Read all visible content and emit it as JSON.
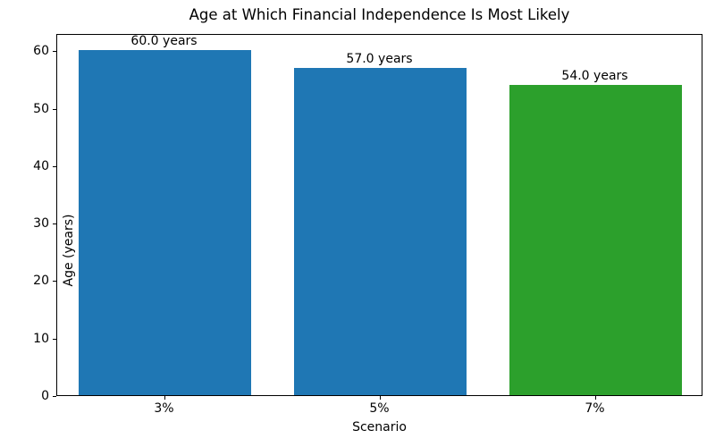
{
  "chart_data": {
    "type": "bar",
    "title": "Age at Which Financial Independence Is Most Likely",
    "xlabel": "Scenario",
    "ylabel": "Age (years)",
    "categories": [
      "3%",
      "5%",
      "7%"
    ],
    "values": [
      60.0,
      57.0,
      54.0
    ],
    "bar_labels": [
      "60.0 years",
      "57.0 years",
      "54.0 years"
    ],
    "bar_colors": [
      "#1f77b4",
      "#1f77b4",
      "#2ca02c"
    ],
    "ylim": [
      0,
      63
    ],
    "yticks": [
      0,
      10,
      20,
      30,
      40,
      50,
      60
    ],
    "grid": false,
    "legend": null,
    "bar_width_fraction": 0.8,
    "spine_color": "#000000",
    "background_color": "#ffffff"
  }
}
